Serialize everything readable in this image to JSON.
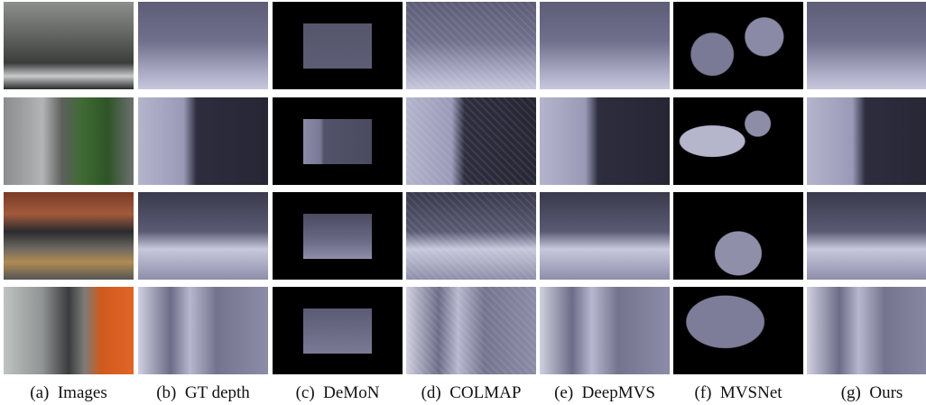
{
  "figure": {
    "columns": [
      {
        "caption": "(a)  Images"
      },
      {
        "caption": "(b)  GT depth"
      },
      {
        "caption": "(c)  DeMoN"
      },
      {
        "caption": "(d)  COLMAP"
      },
      {
        "caption": "(e)  DeepMVS"
      },
      {
        "caption": "(f)  MVSNet"
      },
      {
        "caption": "(g)  Ours"
      }
    ]
  }
}
